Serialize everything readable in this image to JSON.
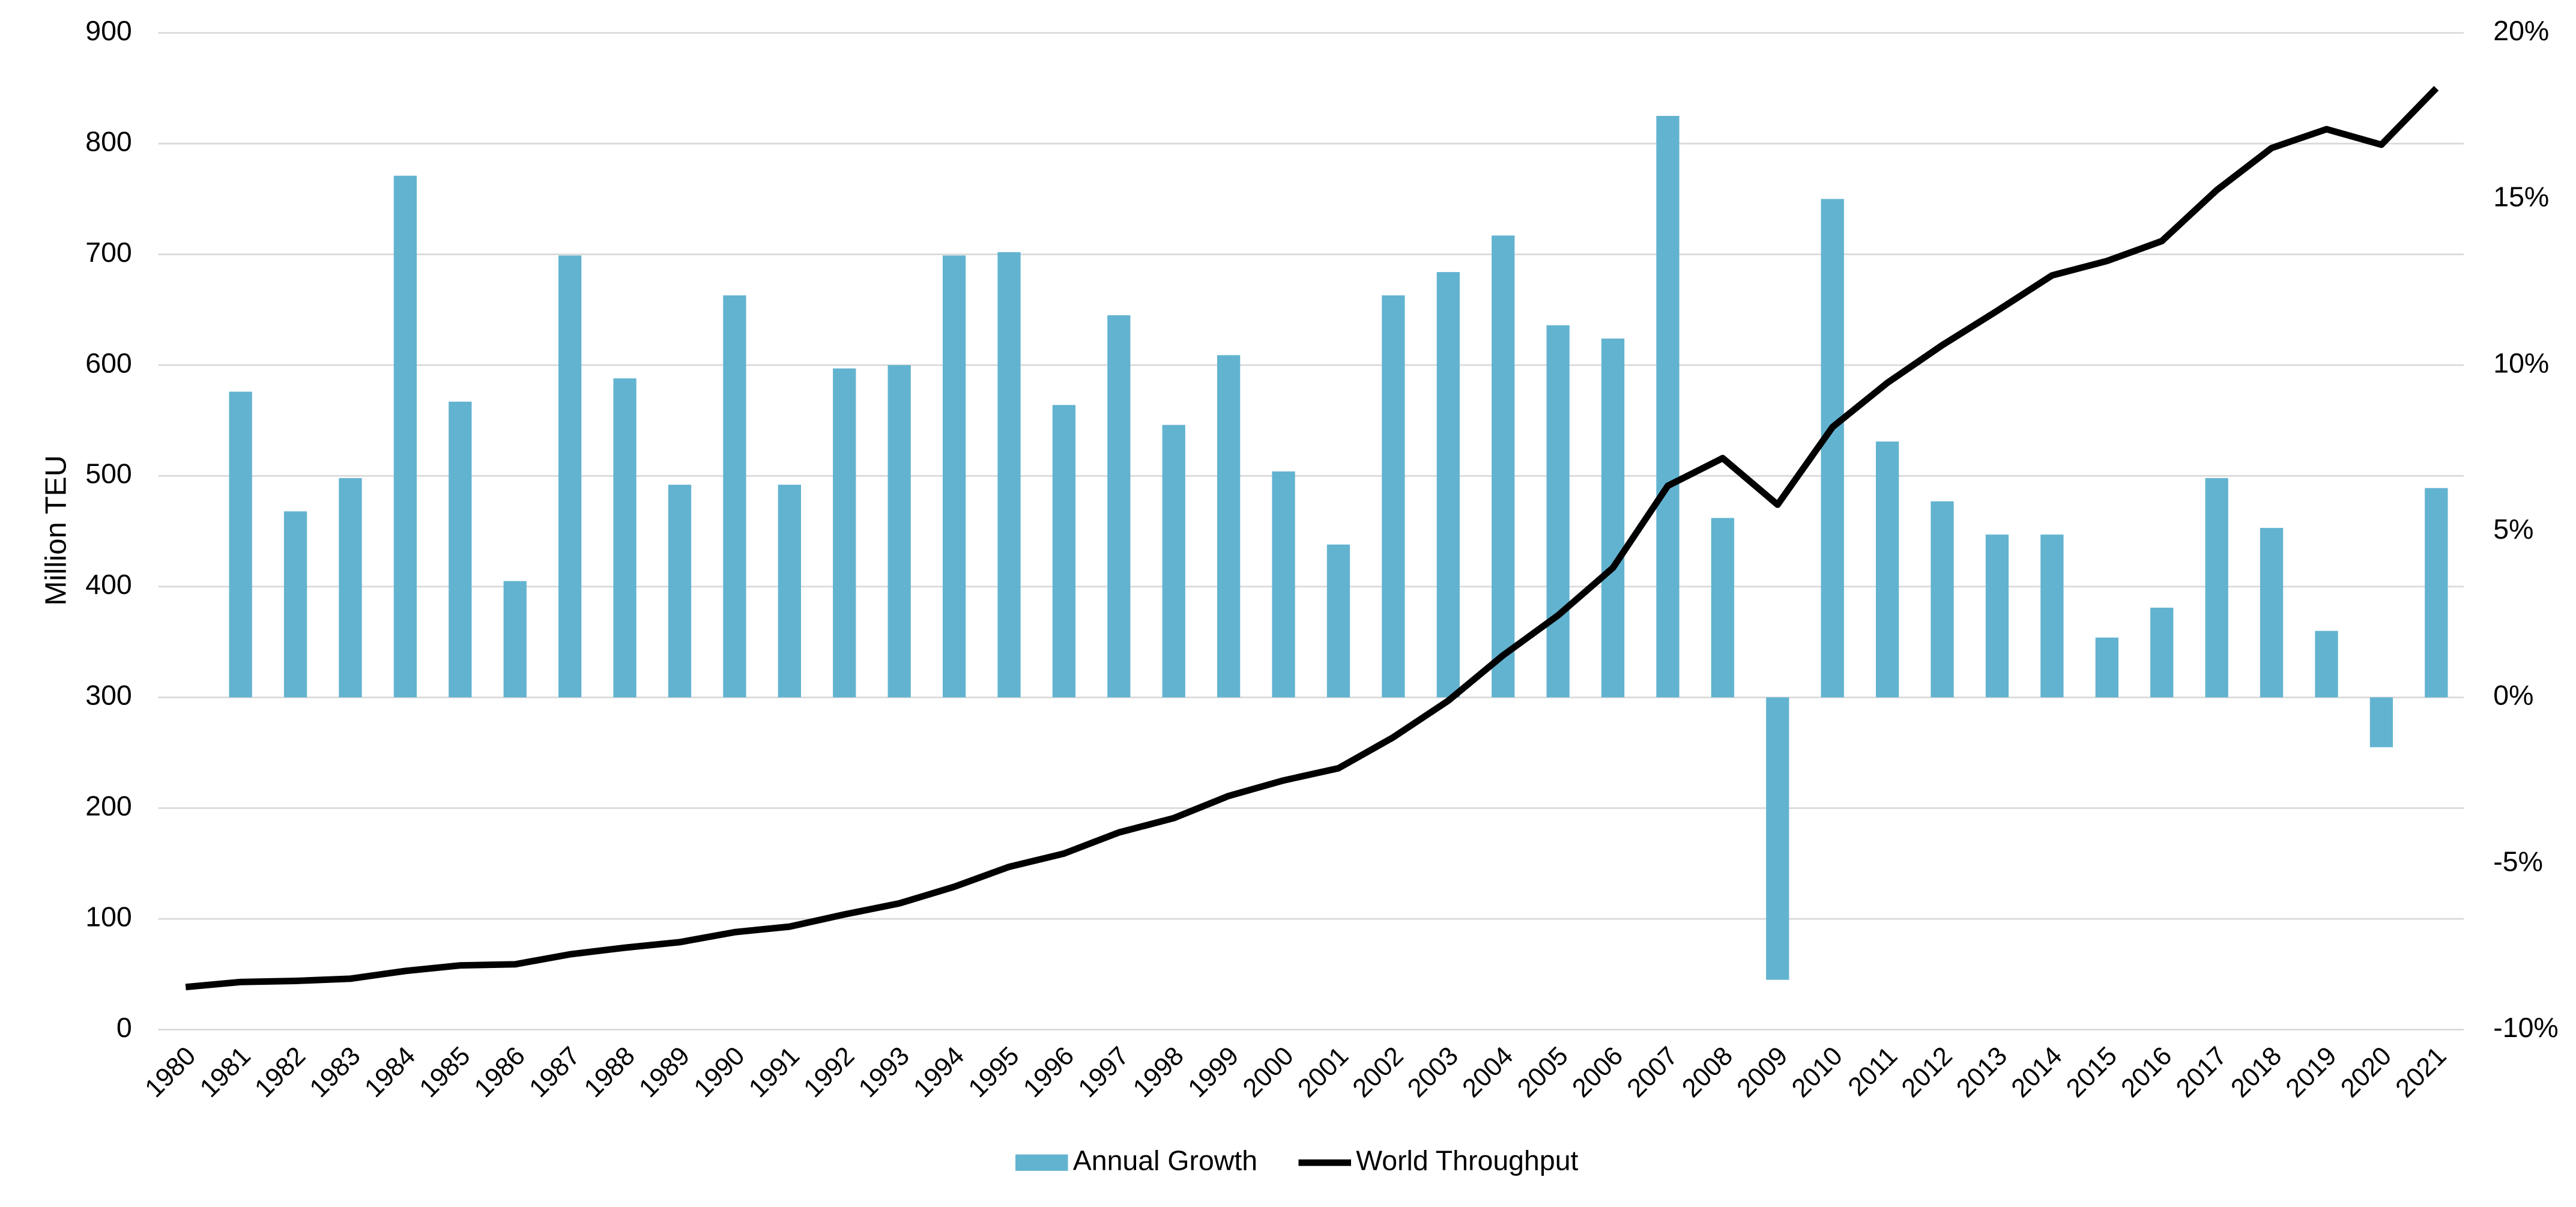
{
  "chart_data": {
    "type": "combo",
    "y_label": "Million TEU",
    "categories": [
      "1980",
      "1981",
      "1982",
      "1983",
      "1984",
      "1985",
      "1986",
      "1987",
      "1988",
      "1989",
      "1990",
      "1991",
      "1992",
      "1993",
      "1994",
      "1995",
      "1996",
      "1997",
      "1998",
      "1999",
      "2000",
      "2001",
      "2002",
      "2003",
      "2004",
      "2005",
      "2006",
      "2007",
      "2008",
      "2009",
      "2010",
      "2011",
      "2012",
      "2013",
      "2014",
      "2015",
      "2016",
      "2017",
      "2018",
      "2019",
      "2020",
      "2021"
    ],
    "series": [
      {
        "name": "Annual Growth",
        "type": "bar",
        "axis": "y2",
        "color": "#62b3d0",
        "values": [
          null,
          9.2,
          5.6,
          6.6,
          15.7,
          8.9,
          3.5,
          13.3,
          9.6,
          6.4,
          12.1,
          6.4,
          9.9,
          10.0,
          13.3,
          13.4,
          8.8,
          11.5,
          8.2,
          10.3,
          6.8,
          4.6,
          12.1,
          12.8,
          13.9,
          11.2,
          10.8,
          17.5,
          5.4,
          -8.5,
          15.0,
          7.7,
          5.9,
          4.9,
          4.9,
          1.8,
          2.7,
          6.6,
          5.1,
          2.0,
          -1.5,
          6.3
        ]
      },
      {
        "name": "World Throughput",
        "type": "line",
        "color": "#000000",
        "values": [
          38.5,
          43,
          44,
          46,
          53,
          58,
          59,
          68,
          74,
          79,
          88,
          93,
          104,
          114,
          129,
          147,
          159,
          178,
          191,
          211,
          225,
          236,
          264,
          297,
          338,
          374,
          417,
          491,
          516,
          474,
          544,
          584,
          618,
          649,
          681,
          694,
          712,
          758,
          796,
          813,
          799,
          850
        ]
      }
    ],
    "ylim": [
      0,
      900
    ],
    "yticks": [
      0,
      100,
      200,
      300,
      400,
      500,
      600,
      700,
      800,
      900
    ],
    "y2lim": [
      -10,
      20
    ],
    "y2ticks": [
      {
        "value": -10,
        "label": "-10%"
      },
      {
        "value": -5,
        "label": "-5%"
      },
      {
        "value": 0,
        "label": "0%"
      },
      {
        "value": 5,
        "label": "5%"
      },
      {
        "value": 10,
        "label": "10%"
      },
      {
        "value": 15,
        "label": "15%"
      },
      {
        "value": 20,
        "label": "20%"
      }
    ],
    "grid": true,
    "legend": "bottom"
  }
}
